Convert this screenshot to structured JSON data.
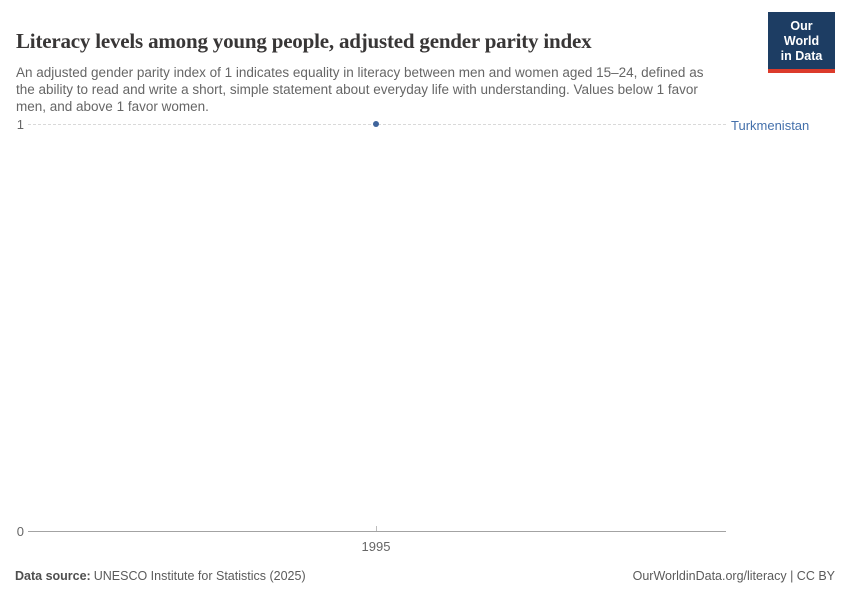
{
  "header": {
    "title": "Literacy levels among young people, adjusted gender parity index",
    "subtitle": "An adjusted gender parity index of 1 indicates equality in literacy between men and women aged 15–24, defined as the ability to read and write a short, simple statement about everyday life with understanding. Values below 1 favor men, and above 1 favor women.",
    "logo_line1": "Our World",
    "logo_line2": "in Data"
  },
  "chart_data": {
    "type": "scatter",
    "title": "Literacy levels among young people, adjusted gender parity index",
    "xlabel": "",
    "ylabel": "",
    "series": [
      {
        "name": "Turkmenistan",
        "points": [
          {
            "x": 1995,
            "y": 1.0
          }
        ]
      }
    ],
    "x_ticks": [
      "1995"
    ],
    "y_ticks": [
      "0",
      "1"
    ],
    "ylim": [
      0,
      1
    ],
    "grid": "horizontal dashed gridline at y=1 only",
    "legend_position": "right-end-of-line label"
  },
  "axes": {
    "y_top_label": "1",
    "y_bottom_label": "0",
    "x_tick_label": "1995",
    "entity_label": "Turkmenistan"
  },
  "footer": {
    "source_label": "Data source:",
    "source_value": "UNESCO Institute for Statistics (2025)",
    "credit": "OurWorldinData.org/literacy | CC BY"
  },
  "colors": {
    "series_blue": "#3f649c",
    "entity_label_blue": "#4470ab",
    "logo_navy": "#1d3d63",
    "logo_red": "#dc3b2b",
    "title_color": "#383636",
    "subtitle_gray": "#666666",
    "gridline_gray": "#d9d9d9",
    "axis_gray": "#a3a3a3"
  }
}
